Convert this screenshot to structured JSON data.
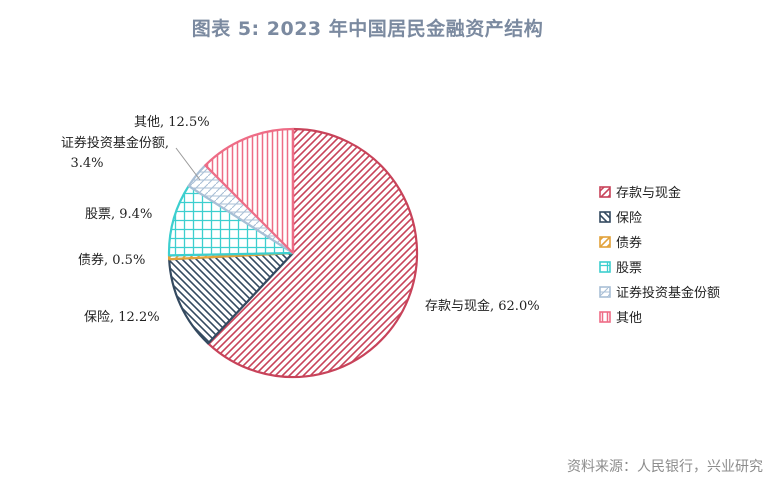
{
  "title": "图表 5:   2023 年中国居民金融资产结构",
  "source": "资料来源：人民银行，兴业研究",
  "chart_data": {
    "type": "pie",
    "series": [
      {
        "name": "存款与现金",
        "value": 62.0,
        "label": "存款与现金, 62.0%",
        "color": "#c8435a",
        "pattern": "diag-right"
      },
      {
        "name": "保险",
        "value": 12.2,
        "label": "保险, 12.2%",
        "color": "#344a60",
        "pattern": "diag-left"
      },
      {
        "name": "债券",
        "value": 0.5,
        "label": "债券, 0.5%",
        "color": "#e2a23a",
        "pattern": "diag-right"
      },
      {
        "name": "股票",
        "value": 9.4,
        "label": "股票, 9.4%",
        "color": "#3ccfcf",
        "pattern": "grid"
      },
      {
        "name": "证券投资基金份额",
        "value": 3.4,
        "label_lines": [
          "证券投资基金份额,",
          "3.4%"
        ],
        "color": "#a9bfd6",
        "pattern": "cross-h"
      },
      {
        "name": "其他",
        "value": 12.5,
        "label": "其他, 12.5%",
        "color": "#ee6c86",
        "pattern": "vertical"
      }
    ],
    "legend_position": "right"
  }
}
